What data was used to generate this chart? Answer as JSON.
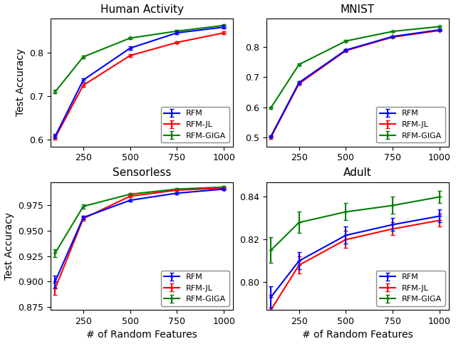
{
  "x": [
    100,
    250,
    500,
    750,
    1000
  ],
  "subplots": [
    {
      "title": "Human Activity",
      "rfm": [
        0.608,
        0.737,
        0.81,
        0.845,
        0.858
      ],
      "rfm_jl": [
        0.605,
        0.725,
        0.793,
        0.823,
        0.845
      ],
      "rfm_giga": [
        0.71,
        0.79,
        0.833,
        0.849,
        0.862
      ],
      "rfm_err": [
        0.005,
        0.004,
        0.004,
        0.003,
        0.003
      ],
      "rfm_jl_err": [
        0.005,
        0.004,
        0.004,
        0.003,
        0.003
      ],
      "rfm_giga_err": [
        0.004,
        0.003,
        0.003,
        0.003,
        0.003
      ],
      "ylim": [
        0.585,
        0.878
      ],
      "yticks": [
        0.6,
        0.7,
        0.8
      ]
    },
    {
      "title": "MNIST",
      "rfm": [
        0.503,
        0.682,
        0.79,
        0.835,
        0.857
      ],
      "rfm_jl": [
        0.5,
        0.678,
        0.788,
        0.833,
        0.855
      ],
      "rfm_giga": [
        0.598,
        0.742,
        0.82,
        0.852,
        0.868
      ],
      "rfm_err": [
        0.004,
        0.004,
        0.004,
        0.003,
        0.003
      ],
      "rfm_jl_err": [
        0.004,
        0.004,
        0.004,
        0.003,
        0.003
      ],
      "rfm_giga_err": [
        0.003,
        0.003,
        0.003,
        0.003,
        0.003
      ],
      "ylim": [
        0.47,
        0.895
      ],
      "yticks": [
        0.5,
        0.6,
        0.7,
        0.8
      ]
    },
    {
      "title": "Sensorless",
      "rfm": [
        0.9,
        0.963,
        0.98,
        0.987,
        0.991
      ],
      "rfm_jl": [
        0.893,
        0.962,
        0.984,
        0.99,
        0.992
      ],
      "rfm_giga": [
        0.928,
        0.974,
        0.986,
        0.991,
        0.993
      ],
      "rfm_err": [
        0.006,
        0.002,
        0.001,
        0.001,
        0.001
      ],
      "rfm_jl_err": [
        0.006,
        0.002,
        0.001,
        0.001,
        0.001
      ],
      "rfm_giga_err": [
        0.004,
        0.002,
        0.001,
        0.001,
        0.001
      ],
      "ylim": [
        0.872,
        0.998
      ],
      "yticks": [
        0.875,
        0.9,
        0.925,
        0.95,
        0.975
      ]
    },
    {
      "title": "Adult",
      "rfm": [
        0.793,
        0.81,
        0.822,
        0.827,
        0.831
      ],
      "rfm_jl": [
        0.787,
        0.808,
        0.82,
        0.825,
        0.829
      ],
      "rfm_giga": [
        0.815,
        0.828,
        0.833,
        0.836,
        0.84
      ],
      "rfm_err": [
        0.005,
        0.004,
        0.004,
        0.003,
        0.003
      ],
      "rfm_jl_err": [
        0.007,
        0.004,
        0.004,
        0.003,
        0.003
      ],
      "rfm_giga_err": [
        0.006,
        0.005,
        0.004,
        0.004,
        0.003
      ],
      "ylim": [
        0.787,
        0.847
      ],
      "yticks": [
        0.8,
        0.82,
        0.84
      ]
    }
  ],
  "colors": {
    "rfm": "#0000ff",
    "rfm_jl": "#ff0000",
    "rfm_giga": "#008000"
  },
  "xlabel": "# of Random Features",
  "ylabel": "Test Accuracy",
  "legend_labels": [
    "RFM",
    "RFM-JL",
    "RFM-GIGA"
  ]
}
